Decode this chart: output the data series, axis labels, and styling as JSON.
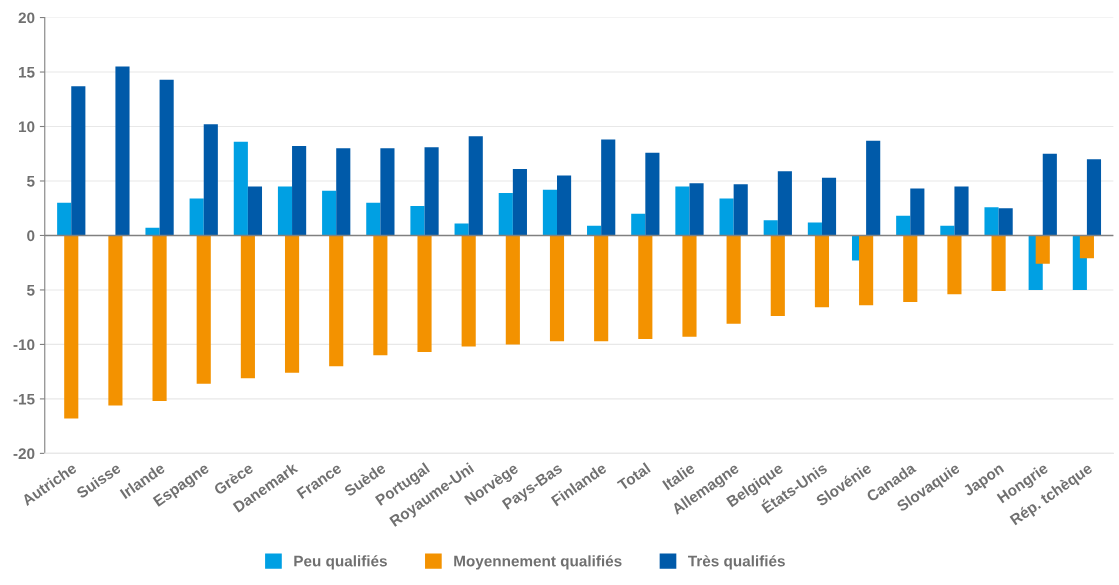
{
  "chart_data": {
    "type": "bar",
    "categories": [
      "Autriche",
      "Suisse",
      "Irlande",
      "Espagne",
      "Grèce",
      "Danemark",
      "France",
      "Suède",
      "Portugal",
      "Royaume-Uni",
      "Norvège",
      "Pays-Bas",
      "Finlande",
      "Total",
      "Italie",
      "Allemagne",
      "Belgique",
      "États-Unis",
      "Slovénie",
      "Canada",
      "Slovaquie",
      "Japon",
      "Hongrie",
      "Rép. tchèque"
    ],
    "series": [
      {
        "name": "Peu qualifiés",
        "color": "#00a0e3",
        "values": [
          3.0,
          null,
          0.7,
          3.4,
          8.6,
          4.5,
          4.1,
          3.0,
          2.7,
          1.1,
          3.9,
          4.2,
          0.9,
          2.0,
          4.5,
          3.4,
          1.4,
          1.2,
          -2.3,
          1.8,
          0.9,
          2.6,
          -5.0,
          -5.0
        ]
      },
      {
        "name": "Moyennement qualifiés",
        "color": "#f39200",
        "values": [
          -16.8,
          -15.6,
          -15.2,
          -13.6,
          -13.1,
          -12.6,
          -12.0,
          -11.0,
          -10.7,
          -10.2,
          -10.0,
          -9.7,
          -9.7,
          -9.5,
          -9.3,
          -8.1,
          -7.4,
          -6.6,
          -6.4,
          -6.1,
          -5.4,
          -5.1,
          -2.6,
          -2.1
        ]
      },
      {
        "name": "Très qualifiés",
        "color": "#005aa9",
        "values": [
          13.7,
          15.5,
          14.3,
          10.2,
          4.5,
          8.2,
          8.0,
          8.0,
          8.1,
          9.1,
          6.1,
          5.5,
          8.8,
          7.6,
          4.8,
          4.7,
          5.9,
          5.3,
          8.7,
          4.3,
          4.5,
          2.5,
          7.5,
          7.0
        ]
      }
    ],
    "ylim": [
      -20,
      20
    ],
    "yticks": [
      -20,
      -15,
      -10,
      {
        "value": -5,
        "label": "5"
      },
      0,
      5,
      10,
      15,
      20
    ],
    "ref_lines": [
      {
        "axis": "y",
        "value": 0,
        "color": "#808080"
      }
    ],
    "grid": "y",
    "legend": "bottom"
  }
}
